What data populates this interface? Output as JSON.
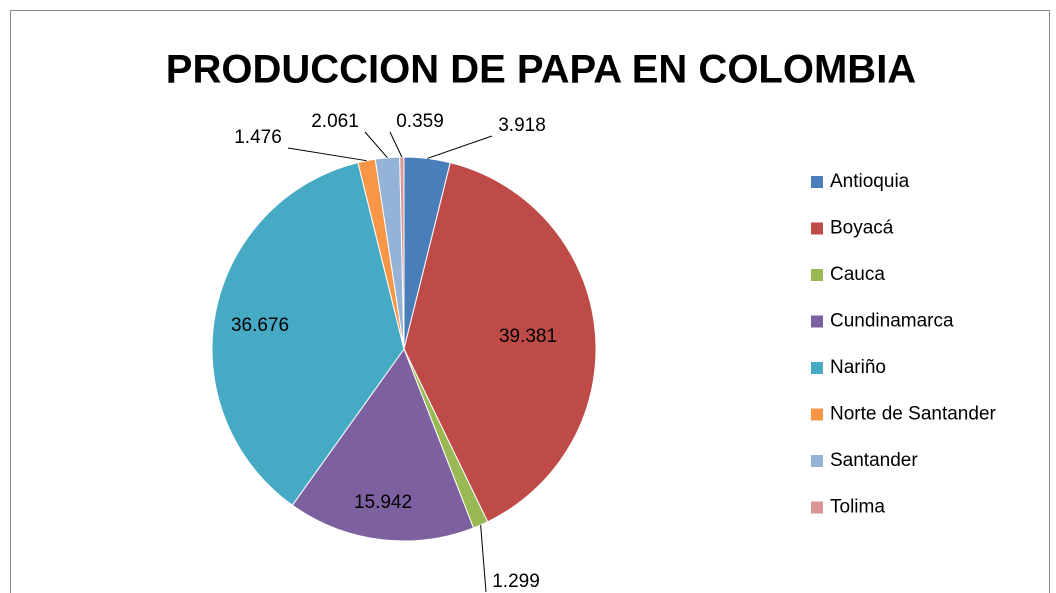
{
  "chart_data": {
    "type": "pie",
    "title": "PRODUCCION DE PAPA EN COLOMBIA",
    "categories": [
      "Antioquia",
      "Boyacá",
      "Cauca",
      "Cundinamarca",
      "Nariño",
      "Norte de Santander",
      "Santander",
      "Tolima"
    ],
    "values": [
      3.918,
      39.381,
      1.299,
      15.942,
      36.676,
      1.476,
      2.061,
      0.359
    ],
    "colors": [
      "#4a7ebb",
      "#be4b48",
      "#98b954",
      "#7d60a0",
      "#46aac5",
      "#f79646",
      "#95b3d7",
      "#d99694"
    ],
    "legend": "right"
  }
}
